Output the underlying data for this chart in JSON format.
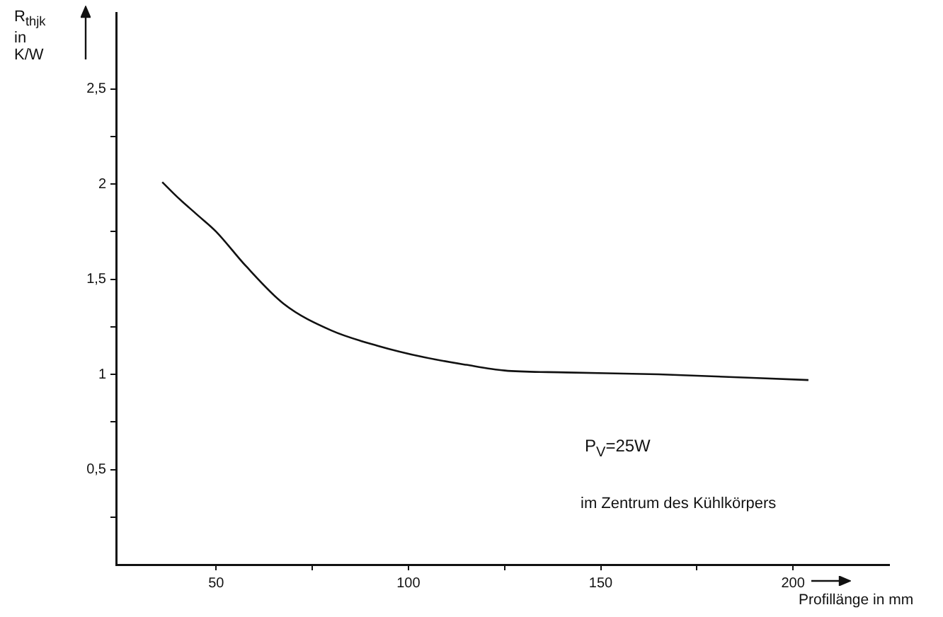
{
  "chart_data": {
    "type": "line",
    "xlabel": "Profillänge in mm",
    "ylabel": "R$_{thjk}$ in K/W",
    "x": [
      36,
      40,
      45,
      50,
      57.7,
      67.6,
      80,
      92,
      104,
      115,
      125,
      141,
      165,
      204
    ],
    "series": [
      {
        "color": "#111111",
        "values": [
          2.01,
          1.93,
          1.84,
          1.75,
          1.57,
          1.37,
          1.23,
          1.15,
          1.09,
          1.05,
          1.02,
          1.01,
          1.0,
          0.97
        ]
      }
    ],
    "xlim": [
      24,
      225
    ],
    "ylim": [
      0,
      2.9
    ],
    "xticks": [
      50,
      {
        "value": 75,
        "label": null
      },
      100,
      {
        "value": 125,
        "label": null
      },
      150,
      {
        "value": 175,
        "label": null
      },
      200
    ],
    "yticks": [
      {
        "value": 0.25,
        "label": null
      },
      {
        "value": 0.5,
        "label": "0,5"
      },
      {
        "value": 0.75,
        "label": null
      },
      1,
      {
        "value": 1.25,
        "label": null
      },
      {
        "value": 1.5,
        "label": "1,5"
      },
      {
        "value": 1.75,
        "label": null
      },
      2,
      {
        "value": 2.25,
        "label": null
      },
      {
        "value": 2.5,
        "label": "2,5"
      }
    ],
    "annotations": [
      "P$_{V}$=25W",
      "im Zentrum des Kühlkörpers"
    ],
    "grid": false,
    "legend": false,
    "marker": "none",
    "line_style": "solid"
  }
}
